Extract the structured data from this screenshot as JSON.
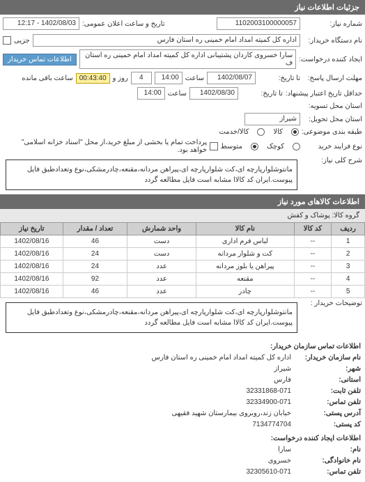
{
  "header": {
    "title": "جزئیات اطلاعات نیاز"
  },
  "form": {
    "request_number_label": "شماره نیاز:",
    "request_number": "1102003100000057",
    "announce_date_label": "تاریخ و ساعت اعلان عمومی:",
    "announce_date": "1402/08/03 - 12:17",
    "buyer_name_label": "نام دستگاه خریدار:",
    "buyer_name": "اداره کل کمیته امداد امام خمینی ره استان فارس",
    "partial_label": "جزیی",
    "requester_label": "ایجاد کننده درخواست:",
    "requester": "سارا خسروی کاردان پشتیبانی اداره کل کمیته امداد امام خمینی ره استان ف",
    "buyer_contact_btn": "اطلاعات تماس خریدار",
    "response_deadline_label": "مهلت ارسال پاسخ:",
    "response_date_label": "تا تاریخ:",
    "response_date": "1402/08/07",
    "response_time_label": "ساعت",
    "response_time": "14:00",
    "days_label": "روز و",
    "days_value": "4",
    "remaining_label": "ساعت باقی مانده",
    "remaining_time": "00:43:40",
    "validity_label": "حداقل تاریخ اعتبار پیشنهاد:",
    "validity_date_label": "تا تاریخ:",
    "validity_date": "1402/08/30",
    "validity_time_label": "ساعت",
    "validity_time": "14:00",
    "execution_label": "استان محل تسویه:",
    "delivery_label": "استان محل تحویل:",
    "province": "شیراز",
    "packaging_label": "طبقه بندی موضوعی:",
    "goods_label": "کالا",
    "services_label": "کالا/خدمت",
    "purchase_type_label": "نوع فرایند خرید",
    "small_label": "کوچک",
    "medium_label": "متوسط",
    "payment_note": "پرداخت تمام یا بخشی از مبلغ خرید،از محل \"اسناد خزانه اسلامی\" خواهد بود.",
    "description_label": "شرح کلی نیاز:",
    "description": "مانتوشلوارپارچه ای،کت شلوارپارچه ای،پیراهن مردانه،مقنعه،چادرمشکی،نوع وتعدادطبق فایل پیوست.ایران کد کالاا مشابه است فایل مطالعه گردد"
  },
  "goods_section": {
    "header": "اطلاعات کالاهای مورد نیاز",
    "category_label": "گروه کالا:",
    "category": "پوشاک و کفش",
    "columns": [
      "ردیف",
      "کد کالا",
      "نام کالا",
      "واحد شمارش",
      "تعداد / مقدار",
      "تاریخ نیاز"
    ],
    "rows": [
      [
        "1",
        "--",
        "لباس فرم اداری",
        "دست",
        "46",
        "1402/08/16"
      ],
      [
        "2",
        "--",
        "کت و شلوار مردانه",
        "دست",
        "24",
        "1402/08/16"
      ],
      [
        "3",
        "--",
        "پیراهن یا بلوز مردانه",
        "عدد",
        "24",
        "1402/08/16"
      ],
      [
        "4",
        "--",
        "مقنعه",
        "عدد",
        "92",
        "1402/08/16"
      ],
      [
        "5",
        "--",
        "چادر",
        "عدد",
        "46",
        "1402/08/16"
      ]
    ],
    "notes_label": "توضیحات خریدار :",
    "notes": "مانتوشلوارپارچه ای،کت شلوارپارچه ای،پیراهن مردانه،مقنعه،چادرمشکی،نوع وتعدادطبق فایل پیوست.ایران کد کالاا مشابه است فایل مطالعه گردد"
  },
  "contact": {
    "header": "اطلاعات تماس سازمان خریدار:",
    "org_label": "نام سازمان خریدار:",
    "org": "اداره کل کمیته امداد امام خمینی ره استان فارس",
    "city_label": "شهر:",
    "city": "شیراز",
    "province_label": "استانی:",
    "province": "فارس",
    "phone1_label": "تلفن ثابت:",
    "phone1": "32331868-071",
    "phone2_label": "تلفن تماس:",
    "phone2": "32334900-071",
    "address_label": "آدرس پستی:",
    "address": "خیابان زند،روبروی بیمارستان شهید فقیهی",
    "postal_label": "کد پستی:",
    "postal": "7134774704",
    "creator_header": "اطلاعات ایجاد کننده درخواست:",
    "name_label": "نام:",
    "name": "سارا",
    "family_label": "نام خانوادگی:",
    "family": "خسروی",
    "contact_phone_label": "تلفن تماس:",
    "contact_phone": "32305610-071"
  }
}
